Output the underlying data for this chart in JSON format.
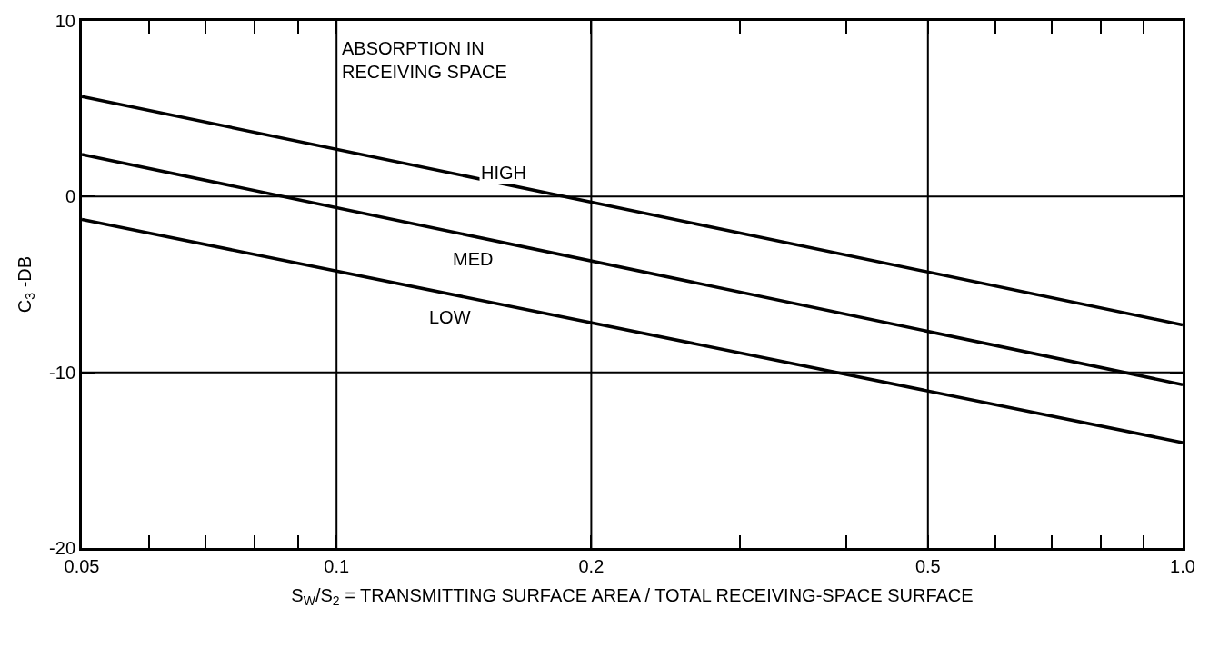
{
  "chart_data": {
    "type": "line",
    "ylabel": "C$_{3}$ -DB",
    "xlabel": "S$_{W}$/S$_{2}$ = TRANSMITTING SURFACE AREA / TOTAL RECEIVING-SPACE SURFACE",
    "log": "x",
    "xlim": [
      0.05,
      1.0
    ],
    "ylim": [
      -20,
      10
    ],
    "xticks": [
      0.05,
      {
        "value": 0.06,
        "label": null
      },
      {
        "value": 0.07,
        "label": null
      },
      {
        "value": 0.08,
        "label": null
      },
      {
        "value": 0.09,
        "label": null
      },
      0.1,
      0.2,
      {
        "value": 0.3,
        "label": null
      },
      {
        "value": 0.4,
        "label": null
      },
      0.5,
      {
        "value": 0.6,
        "label": null
      },
      {
        "value": 0.7,
        "label": null
      },
      {
        "value": 0.8,
        "label": null
      },
      {
        "value": 0.9,
        "label": null
      },
      {
        "value": 1.0,
        "label": "1.0"
      }
    ],
    "yticks": [
      -20,
      -10,
      0,
      10
    ],
    "grid": true,
    "legend": false,
    "line_style": "solid",
    "marker": "none",
    "x": [
      0.05,
      1.0
    ],
    "series": [
      {
        "name": "HIGH",
        "color": "#000000",
        "values": [
          5.7,
          -7.3
        ]
      },
      {
        "name": "MED",
        "color": "#000000",
        "values": [
          2.4,
          -10.7
        ]
      },
      {
        "name": "LOW",
        "color": "#000000",
        "values": [
          -1.3,
          -14.0
        ]
      }
    ],
    "annotations": [
      "ABSORPTION IN\nRECEIVING SPACE"
    ]
  }
}
